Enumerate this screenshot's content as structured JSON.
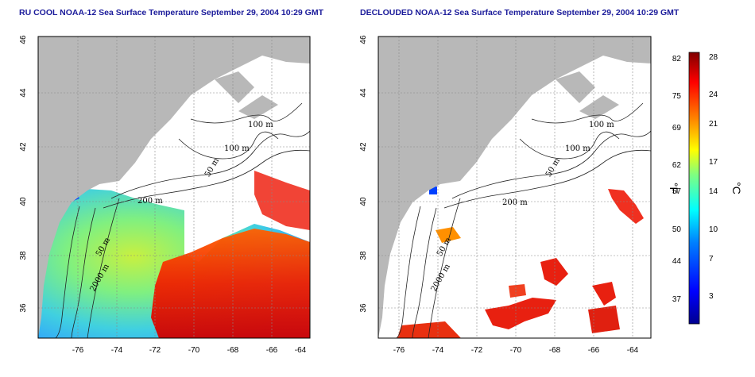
{
  "panels": [
    {
      "title": "RU COOL NOAA-12 Sea Surface Temperature September 29, 2004 10:29 GMT",
      "x_ticks": [
        "-76",
        "-74",
        "-72",
        "-70",
        "-68",
        "-66",
        "-64"
      ],
      "y_ticks": [
        "36",
        "38",
        "40",
        "42",
        "44",
        "46"
      ],
      "contour_labels": [
        "100 m",
        "100 m",
        "50 m",
        "200 m",
        "50 m",
        "2000 m"
      ]
    },
    {
      "title": "DECLOUDED NOAA-12 Sea Surface Temperature September 29, 2004 10:29 GMT",
      "x_ticks": [
        "-76",
        "-74",
        "-72",
        "-70",
        "-68",
        "-66",
        "-64"
      ],
      "y_ticks": [
        "36",
        "38",
        "40",
        "42",
        "44",
        "46"
      ],
      "contour_labels": [
        "100 m",
        "100 m",
        "50 m",
        "200 m",
        "50 m",
        "2000 m"
      ]
    }
  ],
  "colorbar": {
    "fahrenheit_ticks": [
      "82",
      "75",
      "69",
      "62",
      "57",
      "50",
      "44",
      "37"
    ],
    "celsius_ticks": [
      "28",
      "24",
      "21",
      "17",
      "14",
      "10",
      "7",
      "3"
    ],
    "fahrenheit_unit": "°F",
    "celsius_unit": "°C",
    "colors": [
      "#00008f",
      "#0000ff",
      "#0080ff",
      "#00ffff",
      "#80ff80",
      "#ffff00",
      "#ff8000",
      "#ff0000",
      "#800000"
    ]
  },
  "colors": {
    "land": "#b8b8b8",
    "cloud": "#ffffff",
    "title": "#1a1a9a"
  }
}
